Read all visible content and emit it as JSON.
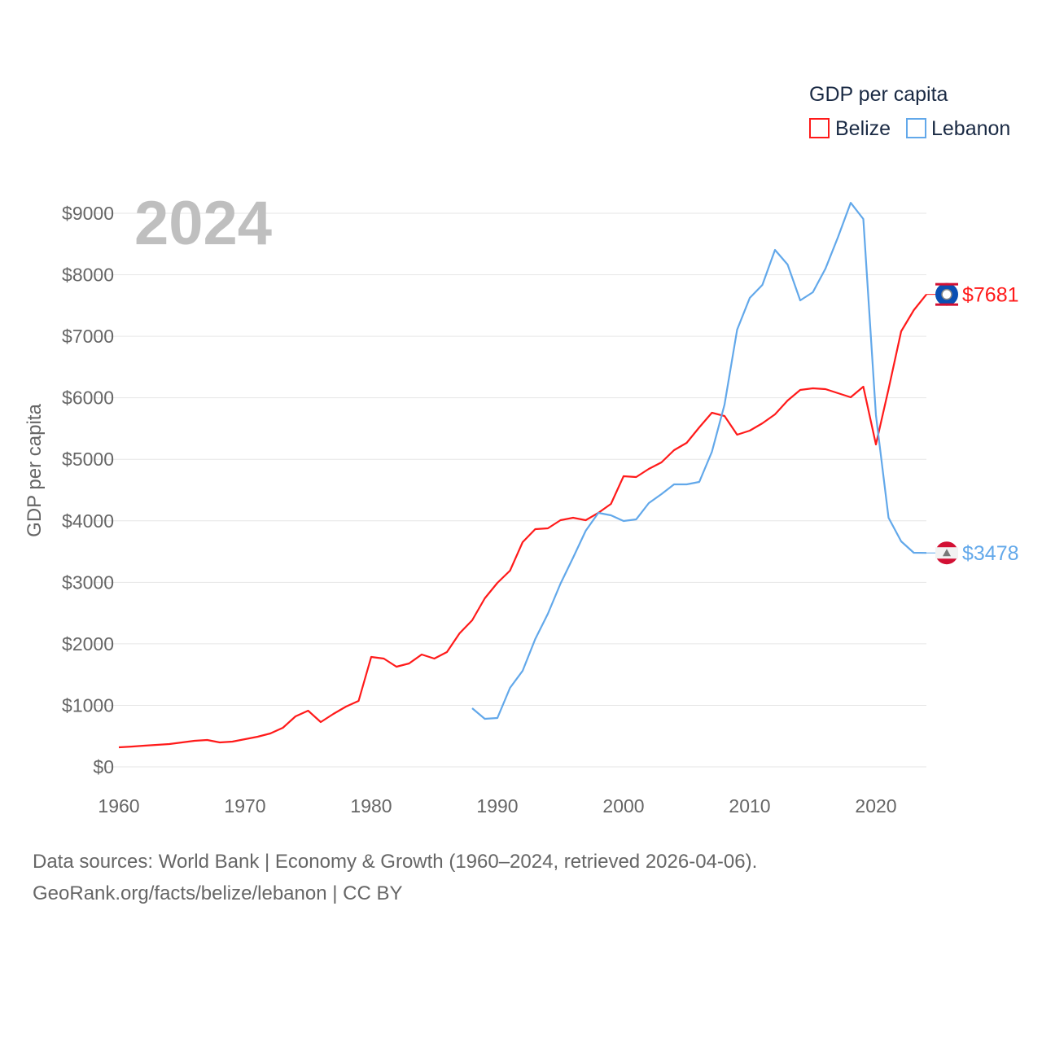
{
  "chart_data": {
    "type": "line",
    "year_label": "2024",
    "ylabel": "GDP per capita",
    "legend_title": "GDP per capita",
    "legend_placement": "top-right",
    "xlim": [
      1960,
      2024
    ],
    "ylim": [
      0,
      9000
    ],
    "x_ticks": [
      1960,
      1970,
      1980,
      1990,
      2000,
      2010,
      2020
    ],
    "x_tick_labels": [
      "1960",
      "1970",
      "1980",
      "1990",
      "2000",
      "2010",
      "2020"
    ],
    "y_ticks": [
      0,
      1000,
      2000,
      3000,
      4000,
      5000,
      6000,
      7000,
      8000,
      9000
    ],
    "y_tick_labels": [
      "$0",
      "$1000",
      "$2000",
      "$3000",
      "$4000",
      "$5000",
      "$6000",
      "$7000",
      "$8000",
      "$9000"
    ],
    "grid": true,
    "series": [
      {
        "name": "Belize",
        "color": "#ff1a1a",
        "end_label": "$7681",
        "flag": "belize-flag",
        "start_year": 1960,
        "values": [
          318,
          330,
          344,
          357,
          370,
          397,
          424,
          437,
          397,
          410,
          450,
          490,
          543,
          635,
          820,
          913,
          728,
          860,
          979,
          1072,
          1787,
          1760,
          1628,
          1681,
          1826,
          1760,
          1866,
          2170,
          2382,
          2740,
          2991,
          3190,
          3653,
          3865,
          3878,
          4010,
          4050,
          4010,
          4129,
          4275,
          4725,
          4712,
          4844,
          4950,
          5148,
          5267,
          5519,
          5757,
          5704,
          5400,
          5466,
          5585,
          5731,
          5956,
          6128,
          6154,
          6141,
          6075,
          6009,
          6181,
          5241,
          6141,
          7081,
          7425,
          7681
        ]
      },
      {
        "name": "Lebanon",
        "color": "#62a8ea",
        "end_label": "$3478",
        "flag": "lebanon-flag",
        "start_year": 1988,
        "values": [
          953,
          781,
          794,
          1284,
          1562,
          2078,
          2488,
          2978,
          3401,
          3838,
          4129,
          4090,
          3997,
          4023,
          4288,
          4434,
          4592,
          4592,
          4632,
          5122,
          5889,
          7107,
          7623,
          7835,
          8404,
          8166,
          7584,
          7716,
          8100,
          8616,
          9171,
          8907,
          5717,
          4050,
          3666,
          3481,
          3478
        ]
      }
    ]
  },
  "footer": {
    "line1": "Data sources: World Bank | Economy & Growth (1960–2024, retrieved 2026-04-06).",
    "line2": "GeoRank.org/facts/belize/lebanon | CC BY"
  }
}
